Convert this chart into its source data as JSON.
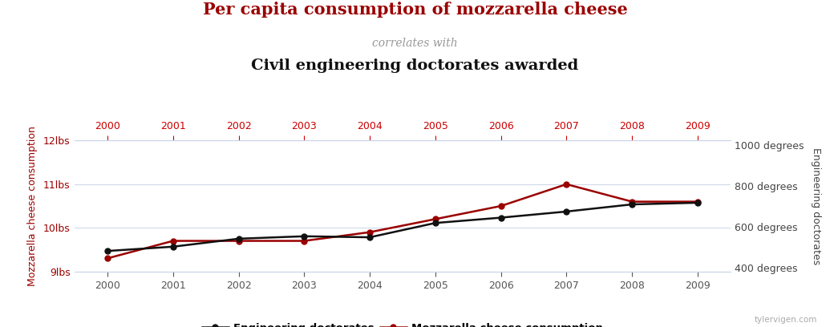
{
  "years": [
    2000,
    2001,
    2002,
    2003,
    2004,
    2005,
    2006,
    2007,
    2008,
    2009
  ],
  "mozzarella": [
    9.3,
    9.7,
    9.7,
    9.7,
    9.9,
    10.2,
    10.5,
    11.0,
    10.6,
    10.6
  ],
  "doctorates": [
    480,
    501,
    540,
    552,
    547,
    617,
    643,
    673,
    708,
    716
  ],
  "mozz_color": "#9b0000",
  "doc_color": "#111111",
  "title1": "Per capita consumption of mozzarella cheese",
  "title2": "correlates with",
  "title3": "Civil engineering doctorates awarded",
  "ylabel_left": "Mozzarella cheese consumption",
  "ylabel_right": "Engineering doctorates",
  "left_yticks": [
    9,
    10,
    11,
    12
  ],
  "left_ylabels": [
    "9lbs",
    "10lbs",
    "11lbs",
    "12lbs"
  ],
  "right_yticks": [
    400,
    600,
    800,
    1000
  ],
  "right_ylabels": [
    "400 degrees",
    "600 degrees",
    "800 degrees",
    "1000 degrees"
  ],
  "ylim_left": [
    9.0,
    12.0
  ],
  "ylim_right": [
    380,
    1020
  ],
  "bg_color": "#ffffff",
  "grid_color": "#d0d8e8",
  "watermark": "tylervigen.com",
  "legend_labels": [
    "Engineering doctorates",
    "Mozzarella cheese consumption"
  ],
  "top_tick_color": "#cc0000",
  "bottom_tick_color": "#555555",
  "spine_color": "#c8d4e8"
}
